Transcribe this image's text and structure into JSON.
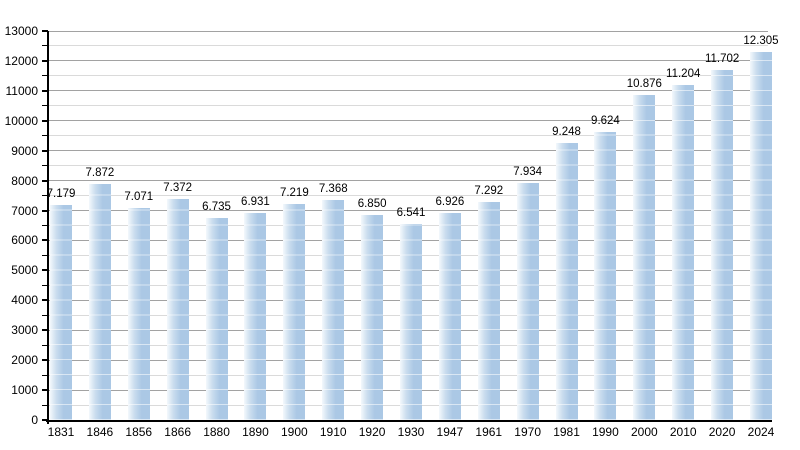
{
  "chart_data": {
    "type": "bar",
    "title": "",
    "xlabel": "",
    "ylabel": "",
    "categories": [
      "1831",
      "1846",
      "1856",
      "1866",
      "1880",
      "1890",
      "1900",
      "1910",
      "1920",
      "1930",
      "1947",
      "1961",
      "1970",
      "1981",
      "1990",
      "2000",
      "2010",
      "2020",
      "2024"
    ],
    "values": [
      7179,
      7872,
      7071,
      7372,
      6735,
      6931,
      7219,
      7368,
      6850,
      6541,
      6926,
      7292,
      7934,
      9248,
      9624,
      10876,
      11204,
      11702,
      12305
    ],
    "value_labels": [
      "7.179",
      "7.872",
      "7.071",
      "7.372",
      "6.735",
      "6.931",
      "7.219",
      "7.368",
      "6.850",
      "6.541",
      "6.926",
      "7.292",
      "7.934",
      "9.248",
      "9.624",
      "10.876",
      "11.204",
      "11.702",
      "12.305"
    ],
    "ylim": [
      0,
      13000
    ],
    "y_major_step": 1000,
    "y_minor_step": 500,
    "y_tick_labels": [
      "0",
      "1000",
      "2000",
      "3000",
      "4000",
      "5000",
      "6000",
      "7000",
      "8000",
      "9000",
      "10000",
      "11000",
      "12000",
      "13000"
    ],
    "grid": "on",
    "legend": "none",
    "colors": {
      "bar_main": "#abc8e5",
      "bar_mid": "#c9dcee",
      "bar_light": "#f3f8fc",
      "grid_major": "#a2a2a2",
      "grid_minor": "#dadada",
      "axis": "#000000",
      "text": "#000000",
      "background": "#ffffff"
    }
  }
}
